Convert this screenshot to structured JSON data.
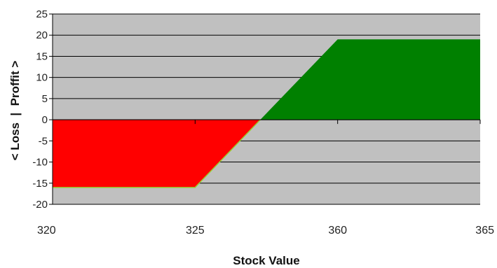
{
  "chart_data": {
    "type": "area",
    "xlabel": "Stock Value",
    "ylabel": "< Loss  |  Proffit >",
    "ylim": [
      -20,
      25
    ],
    "yticks": [
      25,
      20,
      15,
      10,
      5,
      0,
      -5,
      -10,
      -15,
      -20
    ],
    "x_ticks": [
      "320",
      "325",
      "360",
      "365"
    ],
    "x_axis": "categorical",
    "grid": true,
    "legend": "none",
    "series": [
      {
        "points": [
          {
            "x": "320",
            "y": -16
          },
          {
            "x": "325",
            "y": -16
          },
          {
            "x": "360",
            "y": 19
          },
          {
            "x": "365",
            "y": 19
          }
        ]
      }
    ],
    "colors": {
      "loss": "#ff0000",
      "profit": "#008000",
      "plot_background": "#c0c0c0",
      "gridline": "#000000",
      "loss_edge": "#9acd32"
    }
  }
}
